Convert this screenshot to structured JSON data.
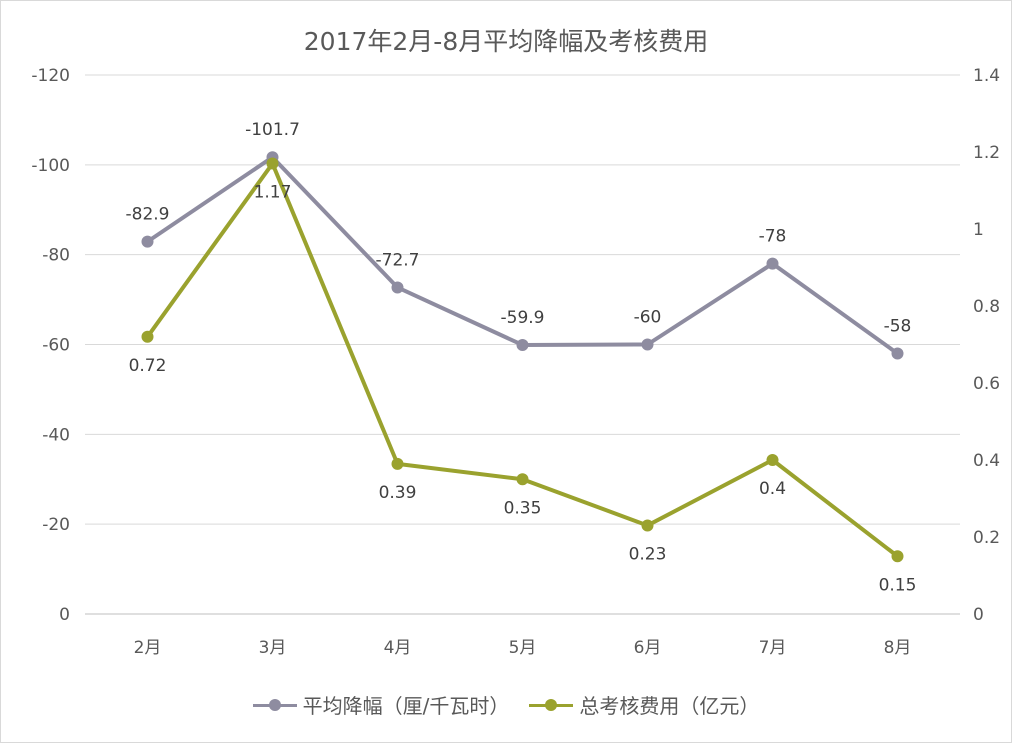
{
  "chart_data": {
    "type": "line",
    "title": "2017年2月-8月平均降幅及考核费用",
    "categories": [
      "2月",
      "3月",
      "4月",
      "5月",
      "6月",
      "7月",
      "8月"
    ],
    "left_axis": {
      "ticks": [
        "-120",
        "-100",
        "-80",
        "-60",
        "-40",
        "-20",
        "0"
      ],
      "ylim": [
        0,
        -120
      ],
      "reversed": true
    },
    "right_axis": {
      "ticks": [
        "1.4",
        "1.2",
        "1",
        "0.8",
        "0.6",
        "0.4",
        "0.2",
        "0"
      ],
      "ylim": [
        0,
        1.4
      ]
    },
    "grid": true,
    "legend_position": "bottom",
    "series": [
      {
        "name": "平均降幅（厘/千瓦时）",
        "axis": "left",
        "color": "#8e8ca0",
        "values": [
          -82.9,
          -101.7,
          -72.7,
          -59.9,
          -60,
          -78,
          -58
        ],
        "labels": [
          "-82.9",
          "-101.7",
          "-72.7",
          "-59.9",
          "-60",
          "-78",
          "-58"
        ]
      },
      {
        "name": "总考核费用（亿元）",
        "axis": "right",
        "color": "#9aa22e",
        "values": [
          0.72,
          1.17,
          0.39,
          0.35,
          0.23,
          0.4,
          0.15
        ],
        "labels": [
          "0.72",
          "1.17",
          "0.39",
          "0.35",
          "0.23",
          "0.4",
          "0.15"
        ]
      }
    ]
  }
}
